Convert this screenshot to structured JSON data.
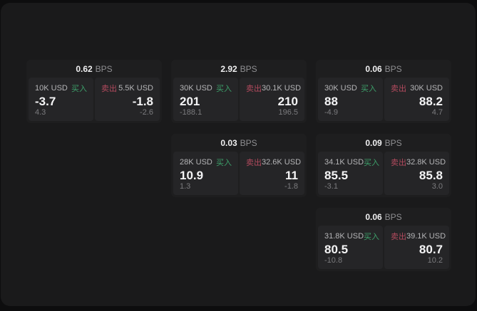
{
  "labels": {
    "bps_unit": "BPS",
    "buy": "买入",
    "sell": "卖出"
  },
  "colors": {
    "buy": "#3da06a",
    "sell": "#b34a5e",
    "window_background": "#1a1a1b",
    "card_background": "#1e1e1f",
    "cell_background": "#252527"
  },
  "cards": [
    {
      "row": 1,
      "col": 1,
      "bps": "0.62",
      "buy": {
        "size": "10K USD",
        "value": "-3.7",
        "delta": "4.3"
      },
      "sell": {
        "size": "5.5K USD",
        "value": "-1.8",
        "delta": "-2.6"
      }
    },
    {
      "row": 1,
      "col": 2,
      "bps": "2.92",
      "buy": {
        "size": "30K USD",
        "value": "201",
        "delta": "-188.1"
      },
      "sell": {
        "size": "30.1K USD",
        "value": "210",
        "delta": "196.5"
      }
    },
    {
      "row": 1,
      "col": 3,
      "bps": "0.06",
      "buy": {
        "size": "30K USD",
        "value": "88",
        "delta": "-4.9"
      },
      "sell": {
        "size": "30K USD",
        "value": "88.2",
        "delta": "4.7"
      }
    },
    {
      "row": 2,
      "col": 2,
      "bps": "0.03",
      "buy": {
        "size": "28K USD",
        "value": "10.9",
        "delta": "1.3"
      },
      "sell": {
        "size": "32.6K USD",
        "value": "11",
        "delta": "-1.8"
      }
    },
    {
      "row": 2,
      "col": 3,
      "bps": "0.09",
      "buy": {
        "size": "34.1K USD",
        "value": "85.5",
        "delta": "-3.1"
      },
      "sell": {
        "size": "32.8K USD",
        "value": "85.8",
        "delta": "3.0"
      }
    },
    {
      "row": 3,
      "col": 3,
      "bps": "0.06",
      "buy": {
        "size": "31.8K USD",
        "value": "80.5",
        "delta": "-10.8"
      },
      "sell": {
        "size": "39.1K USD",
        "value": "80.7",
        "delta": "10.2"
      }
    }
  ]
}
